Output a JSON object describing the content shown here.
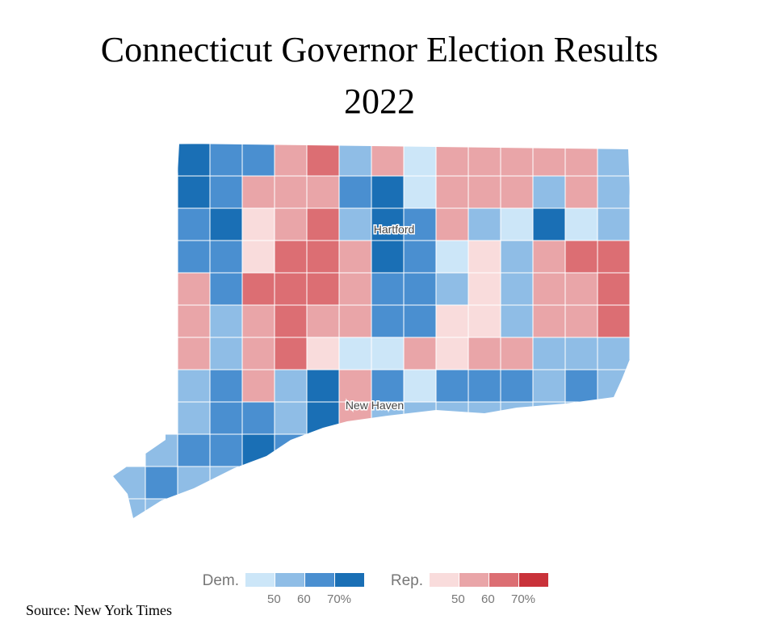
{
  "title": [
    "Connecticut Governor Election Results",
    "2022"
  ],
  "map": {
    "labels": [
      "Hartford",
      "New Haven"
    ]
  },
  "legend": {
    "groups": [
      {
        "name": "Dem.",
        "colors": [
          "#cce6f8",
          "#8fbde6",
          "#4a8fd0",
          "#1a6fb5"
        ],
        "ticks": [
          "50",
          "60",
          "70%"
        ]
      },
      {
        "name": "Rep.",
        "colors": [
          "#f9dcdc",
          "#e9a5a8",
          "#dc6e73",
          "#c9323a"
        ],
        "ticks": [
          "50",
          "60",
          "70%"
        ]
      }
    ]
  },
  "source": "Source: New York Times"
}
